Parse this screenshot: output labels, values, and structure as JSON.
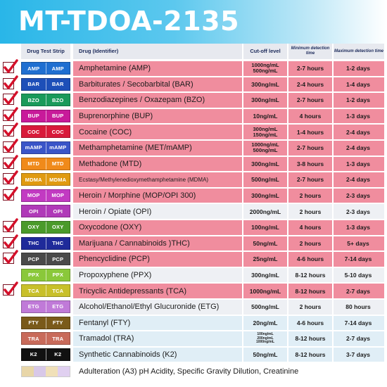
{
  "title": "MT-TDOA-2135",
  "headers": {
    "strip": "Drug Test Strip",
    "drug": "Drug (Identifier)",
    "cutoff": "Cut-off level",
    "det_min": "Minimum detection time",
    "det_max": "Maximum detection time"
  },
  "rows": [
    {
      "checked": true,
      "code": "AMP",
      "color": "#1f6fd1",
      "drug": "Amphetamine (AMP)",
      "cutoff": [
        "1000ng/mL",
        "500ng/mL"
      ],
      "min": "2-7 hours",
      "max": "1-2 days",
      "bg": "pink"
    },
    {
      "checked": true,
      "code": "BAR",
      "color": "#1d4fb8",
      "drug": "Barbiturates / Secobarbital (BAR)",
      "cutoff": [
        "300ng/mL"
      ],
      "min": "2-4 hours",
      "max": "1-4 days",
      "bg": "pink"
    },
    {
      "checked": true,
      "code": "BZO",
      "color": "#1a9a5a",
      "drug": "Benzodiazepines / Oxazepam (BZO)",
      "cutoff": [
        "300ng/mL"
      ],
      "min": "2-7 hours",
      "max": "1-2 days",
      "bg": "pink"
    },
    {
      "checked": true,
      "code": "BUP",
      "color": "#c81a9a",
      "drug": "Buprenorphine (BUP)",
      "cutoff": [
        "10ng/mL"
      ],
      "min": "4 hours",
      "max": "1-3 days",
      "bg": "pink"
    },
    {
      "checked": true,
      "code": "COC",
      "color": "#d81a3a",
      "drug": "Cocaine (COC)",
      "cutoff": [
        "300ng/mL",
        "150ng/mL"
      ],
      "min": "1-4 hours",
      "max": "2-4 days",
      "bg": "pink"
    },
    {
      "checked": true,
      "code": "mAMP",
      "color": "#3a55c8",
      "drug": "Methamphetamine (MET/mAMP)",
      "cutoff": [
        "1000ng/mL",
        "500ng/mL"
      ],
      "min": "2-7 hours",
      "max": "2-4 days",
      "bg": "pink"
    },
    {
      "checked": true,
      "code": "MTD",
      "color": "#f08a1a",
      "drug": "Methadone (MTD)",
      "cutoff": [
        "300ng/mL"
      ],
      "min": "3-8 hours",
      "max": "1-3 days",
      "bg": "pink"
    },
    {
      "checked": true,
      "code": "MDMA",
      "color": "#e09a10",
      "drug": "Ecstasy/Methylenedioxymethamphetamine (MDMA)",
      "cutoff": [
        "500ng/mL"
      ],
      "min": "2-7 hours",
      "max": "2-4 days",
      "bg": "pink",
      "tiny": true
    },
    {
      "checked": true,
      "code": "MOP",
      "color": "#c23ac2",
      "drug": "Heroin / Morphine (MOP/OPI 300)",
      "cutoff": [
        "300ng/mL"
      ],
      "min": "2 hours",
      "max": "2-3 days",
      "bg": "pink"
    },
    {
      "checked": false,
      "code": "OPI",
      "color": "#b03ab8",
      "drug": "Heroin / Opiate (OPI)",
      "cutoff": [
        "2000ng/mL"
      ],
      "min": "2 hours",
      "max": "2-3 days",
      "bg": "light"
    },
    {
      "checked": true,
      "code": "OXY",
      "color": "#4a9a2a",
      "drug": "Oxycodone (OXY)",
      "cutoff": [
        "100ng/mL"
      ],
      "min": "4 hours",
      "max": "1-3 days",
      "bg": "pink"
    },
    {
      "checked": true,
      "code": "THC",
      "color": "#1f2a9a",
      "drug": "Marijuana / Cannabinoids )THC)",
      "cutoff": [
        "50ng/mL"
      ],
      "min": "2 hours",
      "max": "5+ days",
      "bg": "pink"
    },
    {
      "checked": true,
      "code": "PCP",
      "color": "#4a4a4a",
      "drug": "Phencyclidine (PCP)",
      "cutoff": [
        "25ng/mL"
      ],
      "min": "4-6 hours",
      "max": "7-14 days",
      "bg": "pink"
    },
    {
      "checked": false,
      "code": "PPX",
      "color": "#8ac83a",
      "drug": "Propoxyphene (PPX)",
      "cutoff": [
        "300ng/mL"
      ],
      "min": "8-12 hours",
      "max": "5-10 days",
      "bg": "light"
    },
    {
      "checked": true,
      "code": "TCA",
      "color": "#c8c02a",
      "drug": "Tricyclic Antidepressants (TCA)",
      "cutoff": [
        "1000ng/mL"
      ],
      "min": "8-12 hours",
      "max": "2-7 days",
      "bg": "pink"
    },
    {
      "checked": false,
      "code": "ETG",
      "color": "#c07ad8",
      "drug": "Alcohol/Ethanol/Ethyl Glucuronide (ETG)",
      "cutoff": [
        "500ng/mL"
      ],
      "min": "2 hours",
      "max": "80 hours",
      "bg": "light"
    },
    {
      "checked": false,
      "code": "FTY",
      "color": "#7a5a1a",
      "drug": "Fentanyl (FTY)",
      "cutoff": [
        "20ng/mL"
      ],
      "min": "4-6 hours",
      "max": "7-14 days",
      "bg": "blue"
    },
    {
      "checked": false,
      "code": "TRA",
      "color": "#c86a5a",
      "drug": "Tramadol (TRA)",
      "cutoff": [
        "100ng/mL",
        "200ng/mL",
        "1000ng/mL"
      ],
      "min": "8-12 hours",
      "max": "2-7 days",
      "bg": "blue"
    },
    {
      "checked": false,
      "code": "K2",
      "color": "#111111",
      "drug": "Synthetic Cannabinoids (K2)",
      "cutoff": [
        "50ng/mL"
      ],
      "min": "8-12 hours",
      "max": "3-7 days",
      "bg": "blue"
    }
  ],
  "adulteration": {
    "label": "Adulteration (A3) pH Acidity, Specific Gravity Dilution, Creatinine",
    "colors": [
      "#e8d6a8",
      "#d8c8e8",
      "#f0e0b8",
      "#e0d0f0"
    ]
  }
}
